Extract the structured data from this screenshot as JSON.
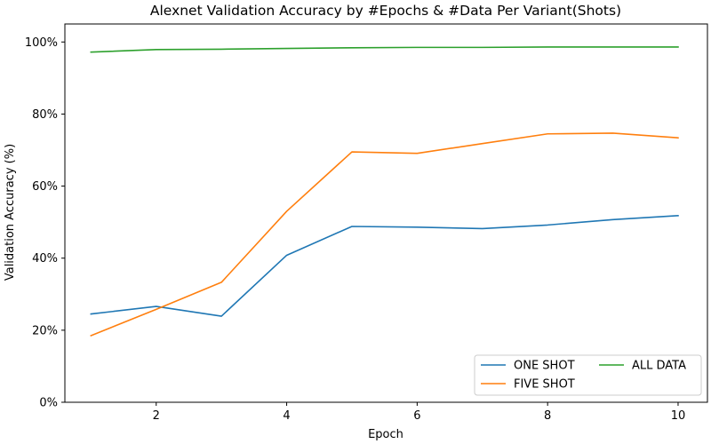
{
  "chart_data": {
    "type": "line",
    "title": "Alexnet Validation Accuracy by #Epochs & #Data Per Variant(Shots)",
    "xlabel": "Epoch",
    "ylabel": "Validation Accuracy (%)",
    "x": [
      1,
      2,
      3,
      4,
      5,
      6,
      7,
      8,
      9,
      10
    ],
    "xlim": [
      0.6,
      10.45
    ],
    "ylim": [
      0,
      1.05
    ],
    "xticks": [
      2,
      4,
      6,
      8,
      10
    ],
    "xtick_labels": [
      "2",
      "4",
      "6",
      "8",
      "10"
    ],
    "yticks": [
      0,
      0.2,
      0.4,
      0.6,
      0.8,
      1.0
    ],
    "ytick_labels": [
      "0%",
      "20%",
      "40%",
      "60%",
      "80%",
      "100%"
    ],
    "grid": false,
    "legend_position": "lower-right",
    "legend_columns": 2,
    "series": [
      {
        "name": "ONE SHOT",
        "color": "#1f77b4",
        "values": [
          0.245,
          0.266,
          0.239,
          0.408,
          0.488,
          0.486,
          0.482,
          0.492,
          0.507,
          0.518
        ]
      },
      {
        "name": "FIVE SHOT",
        "color": "#ff7f0e",
        "values": [
          0.185,
          0.258,
          0.333,
          0.53,
          0.695,
          0.691,
          0.718,
          0.745,
          0.747,
          0.734
        ]
      },
      {
        "name": "ALL DATA",
        "color": "#2ca02c",
        "values": [
          0.972,
          0.979,
          0.98,
          0.982,
          0.984,
          0.985,
          0.985,
          0.986,
          0.986,
          0.986
        ]
      }
    ]
  }
}
